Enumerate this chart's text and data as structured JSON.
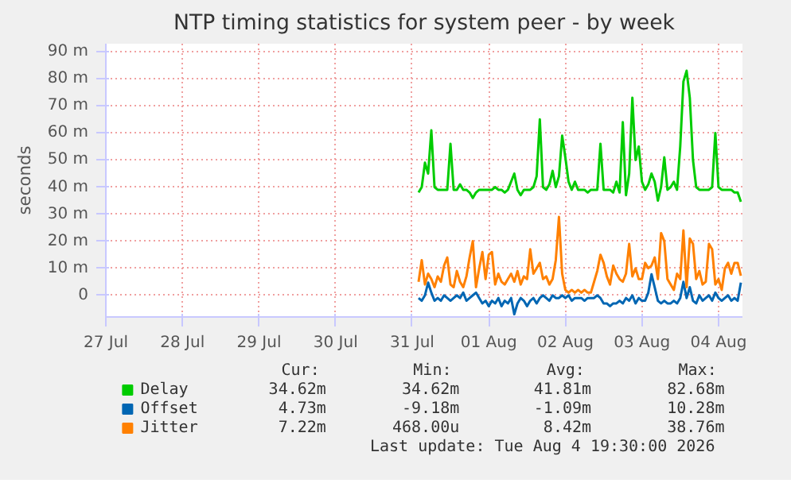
{
  "chart_data": {
    "type": "line",
    "title": "NTP timing statistics for system peer - by week",
    "ylabel": "seconds",
    "xlim": [
      "2026-07-27T12:00",
      "2026-08-04T19:30"
    ],
    "xticks": [
      {
        "value": "2026-07-27T12:00",
        "label": "27 Jul"
      },
      {
        "value": "2026-07-28T12:00",
        "label": "28 Jul"
      },
      {
        "value": "2026-07-29T12:00",
        "label": "29 Jul"
      },
      {
        "value": "2026-07-30T12:00",
        "label": "30 Jul"
      },
      {
        "value": "2026-07-31T12:00",
        "label": "31 Jul"
      },
      {
        "value": "2026-08-01T12:00",
        "label": "01 Aug"
      },
      {
        "value": "2026-08-02T12:00",
        "label": "02 Aug"
      },
      {
        "value": "2026-08-03T12:00",
        "label": "03 Aug"
      },
      {
        "value": "2026-08-04T12:00",
        "label": "04 Aug"
      }
    ],
    "ylim": [
      -8,
      93
    ],
    "yticks": [
      0,
      {
        "value": 10,
        "label": "10 m"
      },
      {
        "value": 20,
        "label": "20 m"
      },
      {
        "value": 30,
        "label": "30 m"
      },
      {
        "value": 40,
        "label": "40 m"
      },
      {
        "value": 50,
        "label": "50 m"
      },
      {
        "value": 60,
        "label": "60 m"
      },
      {
        "value": 70,
        "label": "70 m"
      },
      {
        "value": 80,
        "label": "80 m"
      },
      {
        "value": 90,
        "label": "90 m"
      }
    ],
    "grid": true,
    "legend": "bottom",
    "line_style": "solid",
    "x": [
      "2026-07-31T14:00",
      "2026-07-31T15:00",
      "2026-07-31T16:00",
      "2026-07-31T17:00",
      "2026-07-31T18:00",
      "2026-07-31T19:00",
      "2026-07-31T20:00",
      "2026-07-31T21:00",
      "2026-07-31T22:00",
      "2026-07-31T23:00",
      "2026-08-01T00:00",
      "2026-08-01T01:00",
      "2026-08-01T02:00",
      "2026-08-01T03:00",
      "2026-08-01T04:00",
      "2026-08-01T05:00",
      "2026-08-01T06:00",
      "2026-08-01T07:00",
      "2026-08-01T08:00",
      "2026-08-01T09:00",
      "2026-08-01T10:00",
      "2026-08-01T11:00",
      "2026-08-01T12:00",
      "2026-08-01T13:00",
      "2026-08-01T14:00",
      "2026-08-01T15:00",
      "2026-08-01T16:00",
      "2026-08-01T17:00",
      "2026-08-01T18:00",
      "2026-08-01T19:00",
      "2026-08-01T20:00",
      "2026-08-01T21:00",
      "2026-08-01T22:00",
      "2026-08-01T23:00",
      "2026-08-02T00:00",
      "2026-08-02T01:00",
      "2026-08-02T02:00",
      "2026-08-02T03:00",
      "2026-08-02T04:00",
      "2026-08-02T05:00",
      "2026-08-02T06:00",
      "2026-08-02T07:00",
      "2026-08-02T08:00",
      "2026-08-02T09:00",
      "2026-08-02T10:00",
      "2026-08-02T11:00",
      "2026-08-02T12:00",
      "2026-08-02T13:00",
      "2026-08-02T14:00",
      "2026-08-02T15:00",
      "2026-08-02T16:00",
      "2026-08-02T17:00",
      "2026-08-02T18:00",
      "2026-08-02T19:00",
      "2026-08-02T20:00",
      "2026-08-02T21:00",
      "2026-08-02T22:00",
      "2026-08-02T23:00",
      "2026-08-03T00:00",
      "2026-08-03T01:00",
      "2026-08-03T02:00",
      "2026-08-03T03:00",
      "2026-08-03T04:00",
      "2026-08-03T05:00",
      "2026-08-03T06:00",
      "2026-08-03T07:00",
      "2026-08-03T08:00",
      "2026-08-03T09:00",
      "2026-08-03T10:00",
      "2026-08-03T11:00",
      "2026-08-03T12:00",
      "2026-08-03T13:00",
      "2026-08-03T14:00",
      "2026-08-03T15:00",
      "2026-08-03T16:00",
      "2026-08-03T17:00",
      "2026-08-03T18:00",
      "2026-08-03T19:00",
      "2026-08-03T20:00",
      "2026-08-03T21:00",
      "2026-08-03T22:00",
      "2026-08-03T23:00",
      "2026-08-04T00:00",
      "2026-08-04T01:00",
      "2026-08-04T02:00",
      "2026-08-04T03:00",
      "2026-08-04T04:00",
      "2026-08-04T05:00",
      "2026-08-04T06:00",
      "2026-08-04T07:00",
      "2026-08-04T08:00",
      "2026-08-04T09:00",
      "2026-08-04T10:00",
      "2026-08-04T11:00",
      "2026-08-04T12:00",
      "2026-08-04T13:00",
      "2026-08-04T14:00",
      "2026-08-04T15:00",
      "2026-08-04T16:00",
      "2026-08-04T17:00",
      "2026-08-04T18:00",
      "2026-08-04T19:00"
    ],
    "series": [
      {
        "name": "Delay",
        "color": "#00cc00",
        "values": [
          38,
          40,
          49,
          45,
          61,
          40,
          39,
          39,
          39,
          39,
          56,
          39,
          39,
          41,
          39,
          39,
          38,
          36,
          38,
          39,
          39,
          39,
          39,
          39,
          40,
          39,
          39,
          38,
          39,
          42,
          45,
          39,
          37,
          39,
          39,
          39,
          40,
          44,
          65,
          40,
          39,
          41,
          46,
          40,
          44,
          59,
          51,
          42,
          39,
          42,
          39,
          39,
          39,
          38,
          39,
          39,
          39,
          56,
          39,
          39,
          39,
          38,
          42,
          38,
          64,
          37,
          45,
          73,
          50,
          55,
          42,
          39,
          41,
          45,
          42,
          35,
          40,
          51,
          39,
          40,
          42,
          39,
          55,
          79,
          83,
          73,
          50,
          40,
          39,
          39,
          39,
          39,
          40,
          60,
          40,
          39,
          39,
          39,
          39,
          38,
          38,
          34.6
        ]
      },
      {
        "name": "Offset",
        "color": "#0066b3",
        "values": [
          -1,
          -2,
          0,
          4.7,
          1,
          -2,
          -1,
          -2,
          0,
          -1,
          -2,
          -1,
          0,
          -1,
          1,
          -2,
          -1,
          0,
          1,
          -1,
          -3,
          -2,
          -4,
          -2,
          -3,
          -1,
          -4,
          -2,
          -3,
          -1,
          -7,
          -3,
          -1,
          -2,
          -4,
          -2,
          -1,
          -3,
          -1,
          0,
          -1,
          -2,
          0,
          -1,
          -1,
          0,
          -1,
          0,
          -2,
          -1,
          -1,
          -1,
          -2,
          -1,
          -1,
          -1,
          0,
          -1,
          -3,
          -3,
          -4,
          -3,
          -3,
          -2,
          -3,
          -1,
          -2,
          0,
          -3,
          -1,
          -2,
          -2,
          1,
          7.8,
          3,
          -2,
          -3,
          -2,
          -3,
          -3,
          -2,
          -3,
          -1,
          5,
          -1,
          3,
          -2,
          -3,
          0,
          -2,
          -1,
          0,
          -2,
          1,
          -1,
          -2,
          -1,
          0,
          -2,
          -1,
          -2,
          4.7
        ]
      },
      {
        "name": "Jitter",
        "color": "#ff8000",
        "values": [
          5,
          13,
          4,
          8,
          6,
          3,
          7,
          5,
          11,
          14,
          4,
          3,
          9,
          5,
          3,
          7,
          14,
          20,
          3,
          10,
          16,
          6,
          15,
          16,
          4,
          8,
          5,
          4,
          6,
          8,
          5,
          9,
          4,
          7,
          6,
          17,
          8,
          10,
          12,
          6,
          7,
          4,
          6,
          13,
          29,
          8,
          2,
          1,
          2,
          1,
          2,
          1,
          2,
          1,
          1,
          5,
          9,
          15,
          12,
          7,
          4,
          11,
          8,
          6,
          5,
          8,
          19,
          7,
          10,
          6,
          6,
          12,
          10,
          11,
          14,
          6,
          23,
          20,
          6,
          4,
          2,
          8,
          6,
          24,
          3,
          21,
          19,
          6,
          9,
          4,
          5,
          19,
          17,
          4,
          6,
          2,
          10,
          12,
          8,
          12,
          12,
          7.2
        ]
      }
    ],
    "annotations": [
      "Cur:",
      "Min:",
      "Avg:",
      "Max:",
      "34.62m",
      "34.62m",
      "41.81m",
      "82.68m",
      "4.73m",
      "-9.18m",
      "-1.09m",
      "10.28m",
      "7.22m",
      "468.00u",
      "8.42m",
      "38.76m",
      "Last update: Tue Aug  4 19:30:00 2026"
    ]
  }
}
